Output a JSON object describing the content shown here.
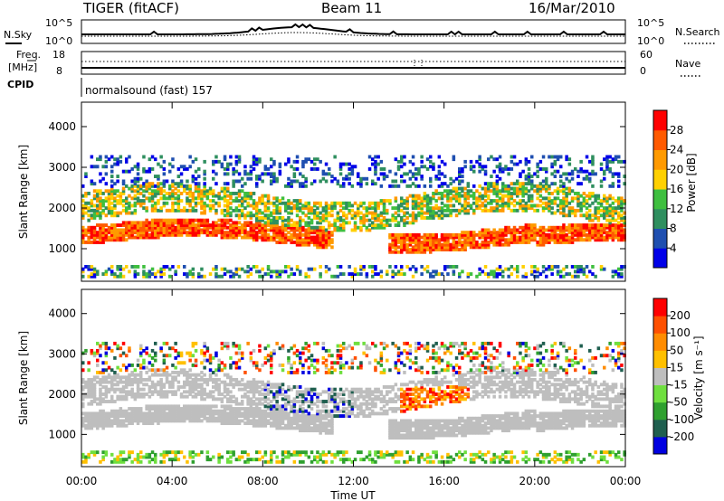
{
  "header": {
    "radar": "TIGER (fitACF)",
    "beam": "Beam 11",
    "date": "16/Mar/2010"
  },
  "sky_panel": {
    "left_label": "N.Sky",
    "right_label": "N.Search",
    "left_ticks": [
      "10^5",
      "10^0"
    ],
    "right_ticks": [
      "10^5",
      "10^0"
    ]
  },
  "freq_panel": {
    "left_label_1": "Freq.",
    "left_label_2": "[MHz]",
    "right_label": "Nave",
    "left_ticks": [
      "18",
      "8"
    ],
    "right_ticks": [
      "60",
      "0"
    ]
  },
  "cpid": {
    "label": "CPID",
    "text": "normalsound (fast) 157"
  },
  "chart_data": [
    {
      "type": "heatmap",
      "name": "Power",
      "ylabel": "Slant Range [km]",
      "yticks": [
        "1000",
        "2000",
        "3000",
        "4000"
      ],
      "ylim": [
        200,
        4600
      ],
      "xlim_hours": [
        0,
        24
      ],
      "colorbar_label": "Power [dB]",
      "colorbar_ticks": [
        "4",
        "8",
        "12",
        "16",
        "20",
        "24",
        "28"
      ],
      "colorbar_colors": [
        "#0000e8",
        "#1f4fb0",
        "#2f8f5f",
        "#3fbf3f",
        "#ffd000",
        "#ff9a00",
        "#ff5a00",
        "#ff0000"
      ]
    },
    {
      "type": "heatmap",
      "name": "Velocity",
      "ylabel": "Slant Range [km]",
      "yticks": [
        "1000",
        "2000",
        "3000",
        "4000"
      ],
      "ylim": [
        200,
        4600
      ],
      "xlim_hours": [
        0,
        24
      ],
      "colorbar_label": "Velocity [m s⁻¹]",
      "colorbar_ticks": [
        "200",
        "100",
        "50",
        "15",
        "-15",
        "-50",
        "-100",
        "-200"
      ],
      "colorbar_colors": [
        "#0000e0",
        "#1f5f4f",
        "#2fa02f",
        "#6fdf3f",
        "#bebebe",
        "#ffc000",
        "#ff8c00",
        "#ff5000",
        "#ff0000"
      ]
    }
  ],
  "x_axis": {
    "ticks": [
      "00:00",
      "04:00",
      "08:00",
      "12:00",
      "16:00",
      "20:00",
      "00:00"
    ],
    "label": "Time UT"
  }
}
